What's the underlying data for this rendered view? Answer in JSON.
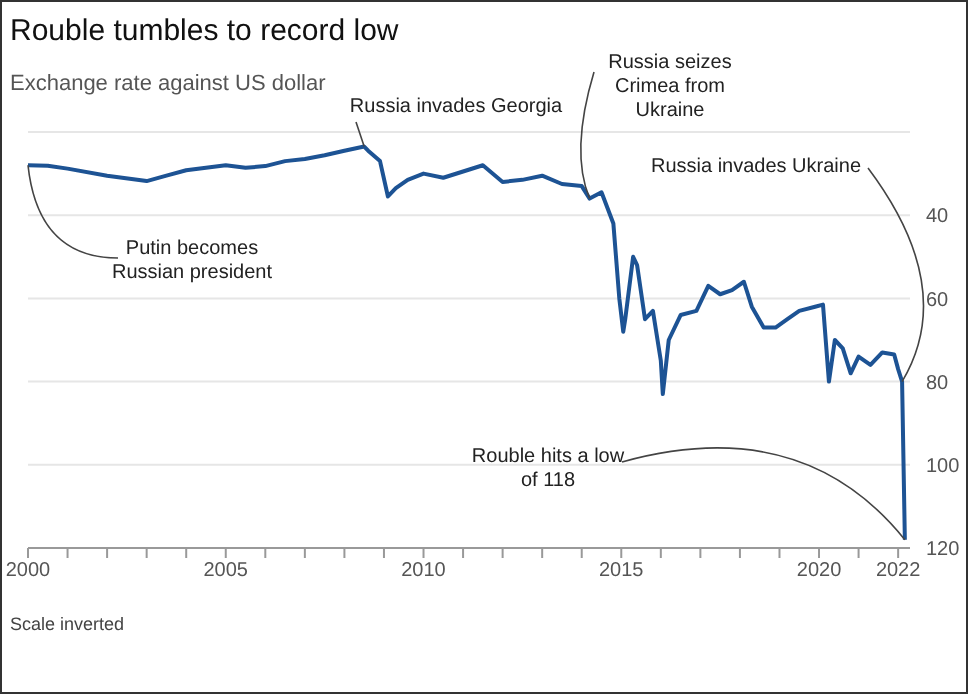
{
  "chart_data": {
    "type": "line",
    "title": "Rouble tumbles to record low",
    "subtitle": "Exchange rate against US dollar",
    "x": [
      2000.0,
      2000.5,
      2001.0,
      2002.0,
      2003.0,
      2003.5,
      2004.0,
      2005.0,
      2005.5,
      2006.0,
      2006.5,
      2007.0,
      2007.5,
      2008.0,
      2008.5,
      2008.6,
      2008.9,
      2009.1,
      2009.3,
      2009.6,
      2010.0,
      2010.5,
      2011.0,
      2011.5,
      2012.0,
      2012.5,
      2013.0,
      2013.5,
      2014.0,
      2014.2,
      2014.5,
      2014.8,
      2014.95,
      2015.05,
      2015.1,
      2015.3,
      2015.4,
      2015.6,
      2015.8,
      2016.0,
      2016.05,
      2016.2,
      2016.5,
      2016.9,
      2017.2,
      2017.5,
      2017.8,
      2018.1,
      2018.3,
      2018.6,
      2018.9,
      2019.2,
      2019.5,
      2019.9,
      2020.1,
      2020.25,
      2020.4,
      2020.6,
      2020.8,
      2021.0,
      2021.3,
      2021.6,
      2021.9,
      2022.0,
      2022.1,
      2022.17
    ],
    "series": [
      {
        "color": "#1d5394",
        "values": [
          28,
          28.1,
          28.8,
          30.5,
          31.8,
          30.5,
          29.2,
          28,
          28.6,
          28.2,
          27,
          26.5,
          25.6,
          24.5,
          23.5,
          24.5,
          27,
          35.5,
          33.5,
          31.5,
          30,
          31,
          29.5,
          28,
          32,
          31.5,
          30.5,
          32.5,
          33,
          36,
          34.5,
          42,
          60,
          68,
          65,
          50,
          52,
          65,
          63,
          75,
          83,
          70,
          64,
          63,
          57,
          59,
          58,
          56,
          62,
          67,
          67,
          65,
          63,
          62,
          61.5,
          80,
          70,
          72,
          78,
          74,
          76,
          73,
          73.5,
          77,
          80,
          118
        ]
      }
    ],
    "xlim": [
      2000,
      2022.3
    ],
    "xticks": [
      2000,
      {
        "value": 2001,
        "label": null
      },
      {
        "value": 2002,
        "label": null
      },
      {
        "value": 2003,
        "label": null
      },
      {
        "value": 2004,
        "label": null
      },
      2005,
      {
        "value": 2006,
        "label": null
      },
      {
        "value": 2007,
        "label": null
      },
      {
        "value": 2008,
        "label": null
      },
      {
        "value": 2009,
        "label": null
      },
      2010,
      {
        "value": 2011,
        "label": null
      },
      {
        "value": 2012,
        "label": null
      },
      {
        "value": 2013,
        "label": null
      },
      {
        "value": 2014,
        "label": null
      },
      2015,
      {
        "value": 2016,
        "label": null
      },
      {
        "value": 2017,
        "label": null
      },
      {
        "value": 2018,
        "label": null
      },
      {
        "value": 2019,
        "label": null
      },
      2020,
      {
        "value": 2021,
        "label": null
      },
      2022
    ],
    "ylim": [
      120,
      20
    ],
    "yticks": [
      40,
      60,
      80,
      100,
      120
    ],
    "grid": "y",
    "marker": "none",
    "line_style": "solid",
    "annotations": [
      {
        "text": "Putin becomes Russian president",
        "x": 2000,
        "y": 28
      },
      {
        "text": "Russia invades Georgia",
        "x": 2008.5,
        "y": 23.5
      },
      {
        "text": "Russia seizes Crimea from Ukraine",
        "x": 2014.2,
        "y": 36
      },
      {
        "text": "Russia invades Ukraine",
        "x": 2022.1,
        "y": 80
      },
      {
        "text": "Rouble hits a low of 118",
        "x": 2022.17,
        "y": 118
      },
      "Scale inverted"
    ]
  }
}
